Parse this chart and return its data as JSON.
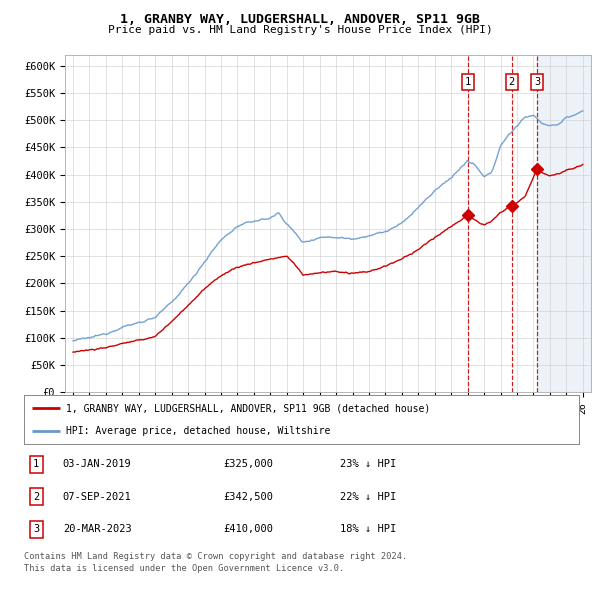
{
  "title1": "1, GRANBY WAY, LUDGERSHALL, ANDOVER, SP11 9GB",
  "title2": "Price paid vs. HM Land Registry's House Price Index (HPI)",
  "yticks": [
    0,
    50000,
    100000,
    150000,
    200000,
    250000,
    300000,
    350000,
    400000,
    450000,
    500000,
    550000,
    600000
  ],
  "ytick_labels": [
    "£0",
    "£50K",
    "£100K",
    "£150K",
    "£200K",
    "£250K",
    "£300K",
    "£350K",
    "£400K",
    "£450K",
    "£500K",
    "£550K",
    "£600K"
  ],
  "xmin": 1994.5,
  "xmax": 2026.5,
  "ymin": 0,
  "ymax": 620000,
  "sale_info": [
    {
      "label": "1",
      "date": "03-JAN-2019",
      "price": "£325,000",
      "hpi": "23% ↓ HPI",
      "year_dec": 2019.01
    },
    {
      "label": "2",
      "date": "07-SEP-2021",
      "price": "£342,500",
      "hpi": "22% ↓ HPI",
      "year_dec": 2021.68
    },
    {
      "label": "3",
      "date": "20-MAR-2023",
      "price": "£410,000",
      "hpi": "18% ↓ HPI",
      "year_dec": 2023.22
    }
  ],
  "sale_prices": [
    325000,
    342500,
    410000
  ],
  "legend1": "1, GRANBY WAY, LUDGERSHALL, ANDOVER, SP11 9GB (detached house)",
  "legend2": "HPI: Average price, detached house, Wiltshire",
  "footer1": "Contains HM Land Registry data © Crown copyright and database right 2024.",
  "footer2": "This data is licensed under the Open Government Licence v3.0.",
  "sale_color": "#cc0000",
  "hpi_color": "#6699cc",
  "vline_color": "#cc0000",
  "background_color": "#ffffff",
  "grid_color": "#cccccc",
  "label_box_color": "#cc0000"
}
